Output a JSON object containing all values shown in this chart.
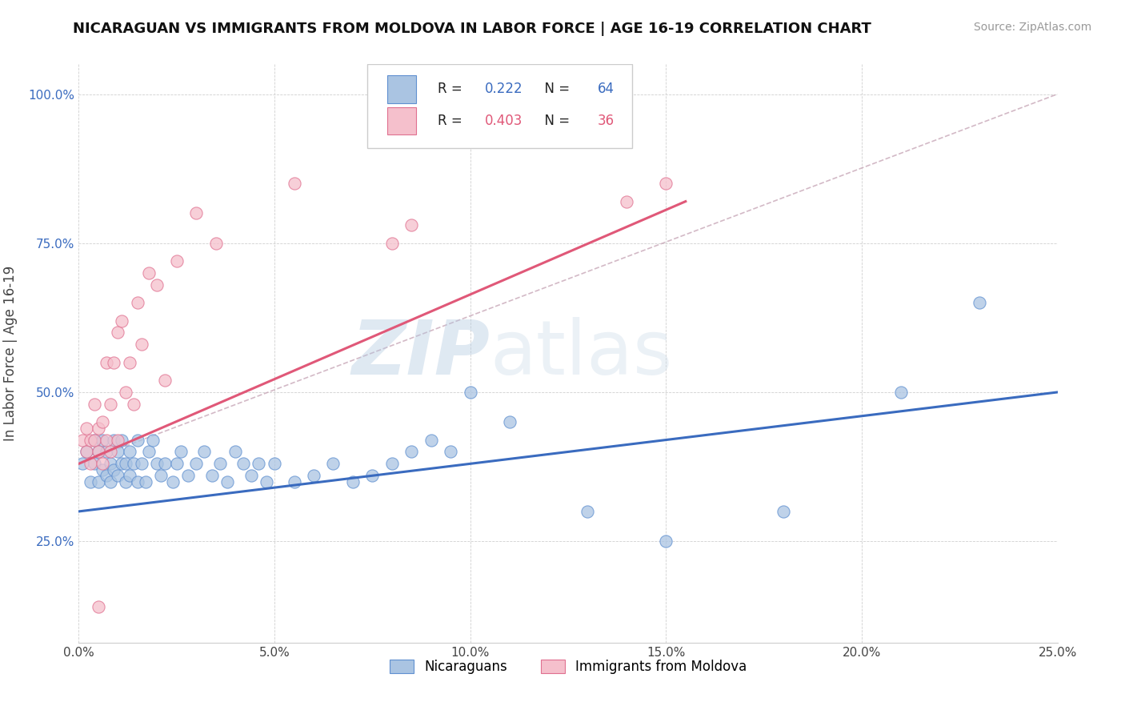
{
  "title": "NICARAGUAN VS IMMIGRANTS FROM MOLDOVA IN LABOR FORCE | AGE 16-19 CORRELATION CHART",
  "source_text": "Source: ZipAtlas.com",
  "ylabel": "In Labor Force | Age 16-19",
  "xlim": [
    0.0,
    0.25
  ],
  "ylim": [
    0.08,
    1.05
  ],
  "xtick_labels": [
    "0.0%",
    "5.0%",
    "10.0%",
    "15.0%",
    "20.0%",
    "25.0%"
  ],
  "xtick_values": [
    0.0,
    0.05,
    0.1,
    0.15,
    0.2,
    0.25
  ],
  "ytick_labels": [
    "25.0%",
    "50.0%",
    "75.0%",
    "100.0%"
  ],
  "ytick_values": [
    0.25,
    0.5,
    0.75,
    1.0
  ],
  "blue_scatter_x": [
    0.001,
    0.002,
    0.003,
    0.004,
    0.004,
    0.005,
    0.005,
    0.006,
    0.006,
    0.007,
    0.007,
    0.008,
    0.008,
    0.009,
    0.009,
    0.01,
    0.01,
    0.011,
    0.011,
    0.012,
    0.012,
    0.013,
    0.013,
    0.014,
    0.015,
    0.015,
    0.016,
    0.017,
    0.018,
    0.019,
    0.02,
    0.021,
    0.022,
    0.024,
    0.025,
    0.026,
    0.028,
    0.03,
    0.032,
    0.034,
    0.036,
    0.038,
    0.04,
    0.042,
    0.044,
    0.046,
    0.048,
    0.05,
    0.055,
    0.06,
    0.065,
    0.07,
    0.075,
    0.08,
    0.085,
    0.09,
    0.095,
    0.1,
    0.11,
    0.13,
    0.15,
    0.18,
    0.21,
    0.23
  ],
  "blue_scatter_y": [
    0.38,
    0.4,
    0.35,
    0.42,
    0.38,
    0.35,
    0.4,
    0.37,
    0.42,
    0.36,
    0.4,
    0.38,
    0.35,
    0.42,
    0.37,
    0.4,
    0.36,
    0.38,
    0.42,
    0.35,
    0.38,
    0.4,
    0.36,
    0.38,
    0.35,
    0.42,
    0.38,
    0.35,
    0.4,
    0.42,
    0.38,
    0.36,
    0.38,
    0.35,
    0.38,
    0.4,
    0.36,
    0.38,
    0.4,
    0.36,
    0.38,
    0.35,
    0.4,
    0.38,
    0.36,
    0.38,
    0.35,
    0.38,
    0.35,
    0.36,
    0.38,
    0.35,
    0.36,
    0.38,
    0.4,
    0.42,
    0.4,
    0.5,
    0.45,
    0.3,
    0.25,
    0.3,
    0.5,
    0.65
  ],
  "pink_scatter_x": [
    0.001,
    0.002,
    0.002,
    0.003,
    0.003,
    0.004,
    0.004,
    0.005,
    0.005,
    0.006,
    0.006,
    0.007,
    0.007,
    0.008,
    0.008,
    0.009,
    0.01,
    0.01,
    0.011,
    0.012,
    0.013,
    0.014,
    0.015,
    0.016,
    0.018,
    0.02,
    0.022,
    0.025,
    0.03,
    0.035,
    0.055,
    0.08,
    0.085,
    0.14,
    0.15,
    0.005
  ],
  "pink_scatter_y": [
    0.42,
    0.44,
    0.4,
    0.42,
    0.38,
    0.42,
    0.48,
    0.4,
    0.44,
    0.38,
    0.45,
    0.42,
    0.55,
    0.4,
    0.48,
    0.55,
    0.42,
    0.6,
    0.62,
    0.5,
    0.55,
    0.48,
    0.65,
    0.58,
    0.7,
    0.68,
    0.52,
    0.72,
    0.8,
    0.75,
    0.85,
    0.75,
    0.78,
    0.82,
    0.85,
    0.14
  ],
  "blue_line_x": [
    0.0,
    0.25
  ],
  "blue_line_y": [
    0.3,
    0.5
  ],
  "pink_line_x": [
    0.0,
    0.155
  ],
  "pink_line_y": [
    0.38,
    0.82
  ],
  "dashed_line_x": [
    0.0,
    0.25
  ],
  "dashed_line_y": [
    0.38,
    1.0
  ],
  "blue_color": "#aac4e2",
  "blue_edge_color": "#6090d0",
  "blue_line_color": "#3a6bbf",
  "pink_color": "#f5c0cc",
  "pink_edge_color": "#e07090",
  "pink_line_color": "#e05878",
  "dashed_line_color": "#c8a8b8",
  "R_blue": "0.222",
  "N_blue": "64",
  "R_pink": "0.403",
  "N_pink": "36",
  "legend_blue_label": "Nicaraguans",
  "legend_pink_label": "Immigrants from Moldova",
  "watermark_zip": "ZIP",
  "watermark_atlas": "atlas",
  "background_color": "#ffffff",
  "grid_color": "#d0d0d0",
  "title_color": "#111111",
  "source_color": "#999999",
  "ylabel_color": "#444444",
  "ytick_color": "#3a6bbf",
  "xtick_color": "#444444"
}
